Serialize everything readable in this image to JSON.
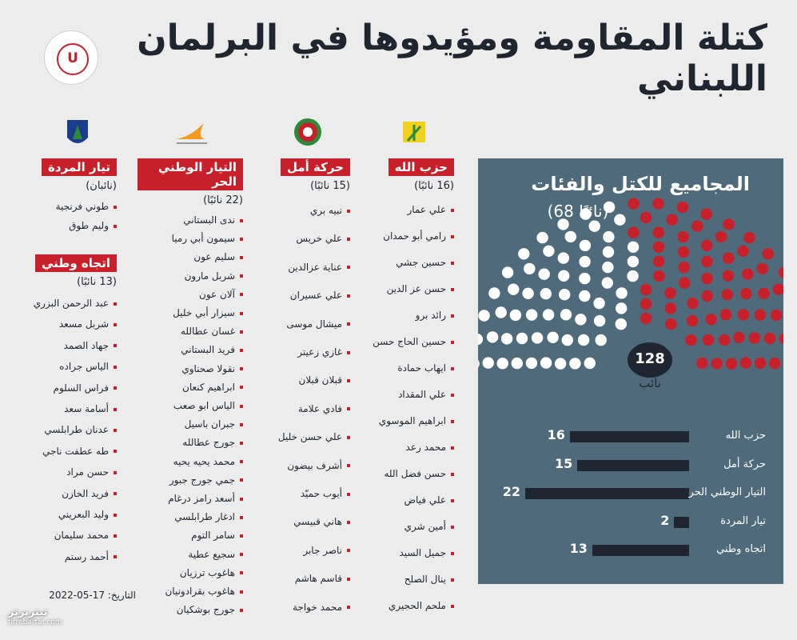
{
  "title": "كتلة المقاومة ومؤيدوها في البرلمان اللبناني",
  "logo_text": "U",
  "panel": {
    "title": "المجاميع للكتل والفئات",
    "subtitle": "(68 نائبًا)",
    "total": "128",
    "total_label": "نائب"
  },
  "parties": [
    {
      "name": "حزب الله",
      "count": "(16 نائبًا)",
      "members": [
        "علي عمار",
        "رامي أبو حمدان",
        "حسين جشي",
        "حسن عز الدين",
        "رائد برو",
        "حسين الحاج حسن",
        "ايهاب حمادة",
        "علي المقداد",
        "ابراهيم الموسوي",
        "محمد رعد",
        "حسن فضل الله",
        "علي فياض",
        "أمين شري",
        "جميل السيد",
        "ينال الصلح",
        "ملحم الحجيري"
      ]
    },
    {
      "name": "حركة أمل",
      "count": "(15 نائبًا)",
      "members": [
        "نبيه بري",
        "علي خريس",
        "عناية عزالدين",
        "علي عسيران",
        "ميشال موسى",
        "غازي زعيتر",
        "قبلان قبلان",
        "فادي علامة",
        "علي حسن خليل",
        "أشرف بيضون",
        "أيوب حميّد",
        "هاني قبيسي",
        "ناصر جابر",
        "قاسم هاشم",
        "محمد خواجة"
      ]
    },
    {
      "name": "التيار الوطني الحر",
      "count": "(22 نائبًا)",
      "members": [
        "ندى البستاني",
        "سيمون أبي رميا",
        "سليم عون",
        "شربل مارون",
        "آلان عون",
        "سيزار أبي خليل",
        "غسان عطالله",
        "فريد البستاني",
        "نقولا صحناوي",
        "ابراهيم كنعان",
        "الياس ابو صعب",
        "جبران باسيل",
        "جورج عطالله",
        "محمد يحيه يحيه",
        "جمي جورج جبور",
        "أسعد رامز درغام",
        "ادغار طرابلسي",
        "سامر التوم",
        "سجيع عطية",
        "هاغوب ترزيان",
        "هاغوب بقرادونيان",
        "جورج بوشكيان"
      ]
    },
    {
      "name": "تيار المردة",
      "count": "(نائبان)",
      "members": [
        "طوني فرنجية",
        "وليم طوق"
      ]
    },
    {
      "name": "اتجاه وطني",
      "count": "(13 نائبًا)",
      "members": [
        "عبد الرحمن البزري",
        "شربل مسعد",
        "جهاد الصمد",
        "الياس جراده",
        "فراس السلوم",
        "أسامة سعد",
        "عدنان طرابلسي",
        "طه عطفت ناجي",
        "حسن مراد",
        "فريد الخازن",
        "وليد البعريني",
        "محمد سليمان",
        "أحمد رستم"
      ]
    }
  ],
  "date_label": "التاريخ: 17-05-2022",
  "watermark": {
    "brand": "تیترِبرتر",
    "site": "titrebartar.com"
  },
  "chart_data": {
    "type": "bar",
    "title": "المجاميع للكتل والفئات",
    "subtitle": "(68 نائبًا)",
    "categories": [
      "حزب الله",
      "حركة أمل",
      "التيار الوطني الحر",
      "تيار المردة",
      "اتجاه وطني"
    ],
    "values": [
      16,
      15,
      22,
      2,
      13
    ],
    "xlim": [
      0,
      22
    ],
    "parliament": {
      "total": 128,
      "highlighted": 68,
      "highlight_color": "#c8202a",
      "other_color": "#ffffff"
    }
  }
}
